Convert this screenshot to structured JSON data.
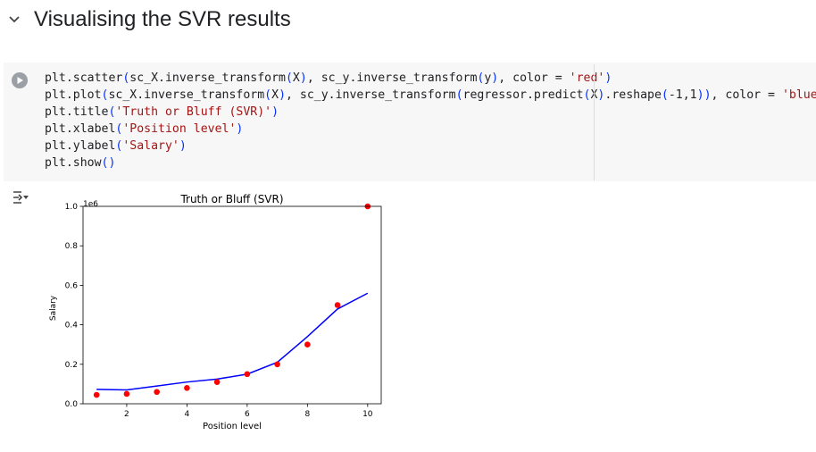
{
  "section": {
    "title": "Visualising the SVR results"
  },
  "code_cell": {
    "lines": [
      [
        {
          "t": "plt.scatter"
        },
        {
          "t": "(",
          "c": "p"
        },
        {
          "t": "sc_X.inverse_transform"
        },
        {
          "t": "(",
          "c": "p"
        },
        {
          "t": "X"
        },
        {
          "t": ")",
          "c": "p"
        },
        {
          "t": ", sc_y.inverse_transform"
        },
        {
          "t": "(",
          "c": "p"
        },
        {
          "t": "y"
        },
        {
          "t": ")",
          "c": "p"
        },
        {
          "t": ", color = "
        },
        {
          "t": "'red'",
          "c": "s"
        },
        {
          "t": ")",
          "c": "p"
        }
      ],
      [
        {
          "t": "plt.plot"
        },
        {
          "t": "(",
          "c": "p"
        },
        {
          "t": "sc_X.inverse_transform"
        },
        {
          "t": "(",
          "c": "p"
        },
        {
          "t": "X"
        },
        {
          "t": ")",
          "c": "p"
        },
        {
          "t": ", sc_y.inverse_transform"
        },
        {
          "t": "(",
          "c": "p"
        },
        {
          "t": "regressor.predict"
        },
        {
          "t": "(",
          "c": "p"
        },
        {
          "t": "X"
        },
        {
          "t": ")",
          "c": "p"
        },
        {
          "t": ".reshape"
        },
        {
          "t": "(",
          "c": "p"
        },
        {
          "t": "-1,1"
        },
        {
          "t": ")",
          "c": "p"
        },
        {
          "t": ")",
          "c": "p"
        },
        {
          "t": ", color = "
        },
        {
          "t": "'blue'",
          "c": "s"
        },
        {
          "t": ")",
          "c": "p"
        }
      ],
      [
        {
          "t": "plt.title"
        },
        {
          "t": "(",
          "c": "p"
        },
        {
          "t": "'Truth or Bluff (SVR)'",
          "c": "s"
        },
        {
          "t": ")",
          "c": "p"
        }
      ],
      [
        {
          "t": "plt.xlabel"
        },
        {
          "t": "(",
          "c": "p"
        },
        {
          "t": "'Position level'",
          "c": "s"
        },
        {
          "t": ")",
          "c": "p"
        }
      ],
      [
        {
          "t": "plt.ylabel"
        },
        {
          "t": "(",
          "c": "p"
        },
        {
          "t": "'Salary'",
          "c": "s"
        },
        {
          "t": ")",
          "c": "p"
        }
      ],
      [
        {
          "t": "plt.show"
        },
        {
          "t": "()",
          "c": "p"
        }
      ]
    ]
  },
  "chart_data": {
    "type": "scatter",
    "title": "Truth or Bluff (SVR)",
    "xlabel": "Position level",
    "ylabel": "Salary",
    "y_offset_text": "1e6",
    "xlim": [
      0.55,
      10.45
    ],
    "ylim": [
      0.0,
      1.0
    ],
    "x_ticks": [
      2,
      4,
      6,
      8,
      10
    ],
    "y_ticks": [
      0.0,
      0.2,
      0.4,
      0.6,
      0.8,
      1.0
    ],
    "x_tick_labels": [
      "2",
      "4",
      "6",
      "8",
      "10"
    ],
    "y_tick_labels": [
      "0.0",
      "0.2",
      "0.4",
      "0.6",
      "0.8",
      "1.0"
    ],
    "series": [
      {
        "kind": "scatter",
        "color": "#ff0000",
        "x": [
          1,
          2,
          3,
          4,
          5,
          6,
          7,
          8,
          9,
          10
        ],
        "y": [
          0.045,
          0.05,
          0.06,
          0.08,
          0.11,
          0.15,
          0.2,
          0.3,
          0.5,
          1.0
        ]
      },
      {
        "kind": "line",
        "color": "#0000ff",
        "x": [
          1,
          2,
          3,
          4,
          5,
          6,
          7,
          8,
          9,
          10
        ],
        "y": [
          0.073,
          0.07,
          0.09,
          0.11,
          0.125,
          0.15,
          0.21,
          0.34,
          0.48,
          0.56
        ]
      }
    ],
    "grid": false,
    "legend": "none"
  },
  "icons": {
    "collapse": "chevron-down-icon",
    "run": "run-cell-icon",
    "output": "output-actions-icon"
  },
  "colors": {
    "string": "#a31515",
    "paren": "#0431fa",
    "cell_bg": "#f7f7f7",
    "scatter": "#ff0000",
    "line": "#0000ff"
  }
}
